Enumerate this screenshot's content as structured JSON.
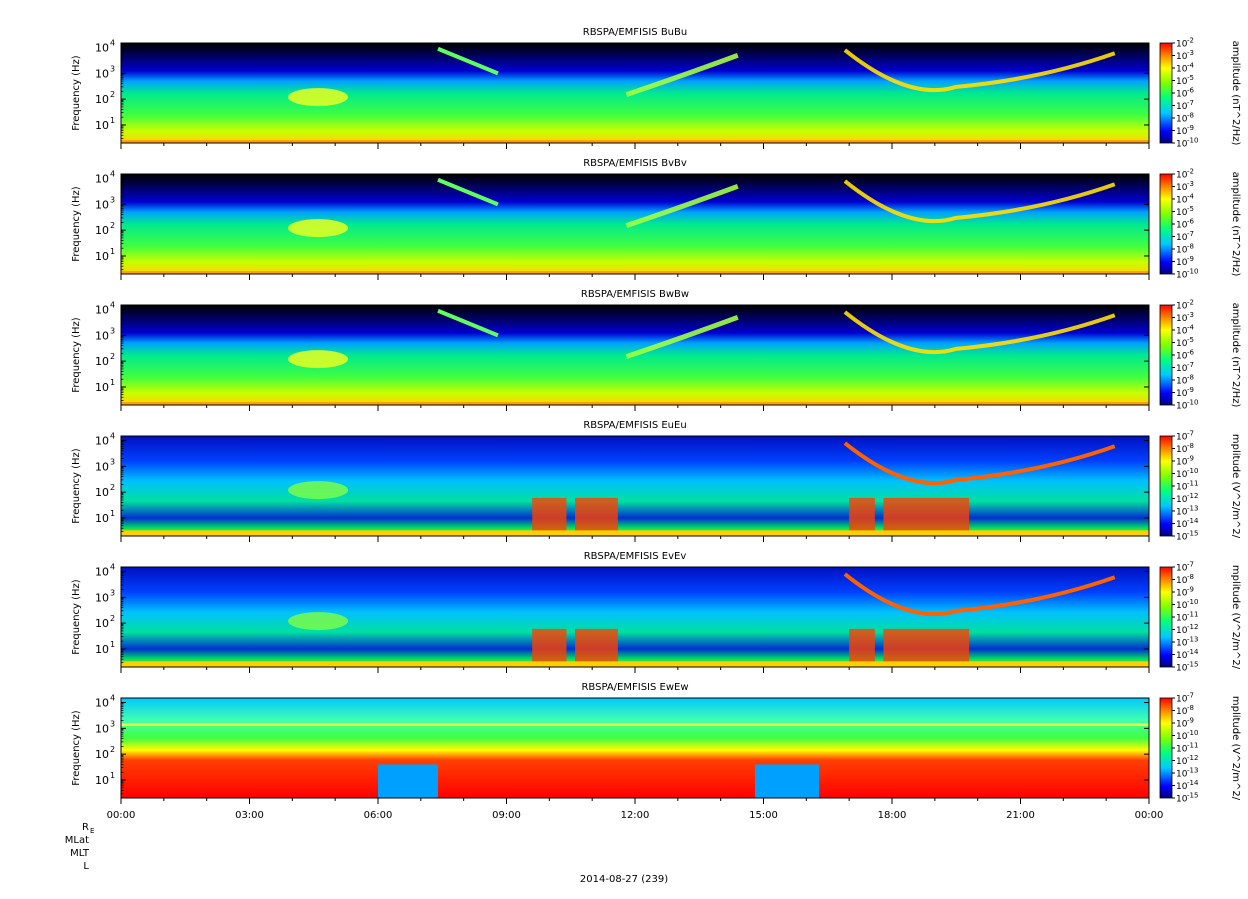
{
  "chart_data": {
    "type": "heatmap",
    "x_ticks": [
      "00:00",
      "03:00",
      "06:00",
      "09:00",
      "12:00",
      "15:00",
      "18:00",
      "21:00",
      "00:00"
    ],
    "x_range_hours": [
      0,
      24
    ],
    "y_scale": "log",
    "y_range_hz": [
      2,
      15000
    ],
    "y_ticks": [
      {
        "value": 10,
        "label": "10",
        "exp": "1"
      },
      {
        "value": 100,
        "label": "10",
        "exp": "2"
      },
      {
        "value": 1000,
        "label": "10",
        "exp": "3"
      },
      {
        "value": 10000,
        "label": "10",
        "exp": "4"
      }
    ],
    "ylabel": "Frequency (Hz)",
    "panels": [
      {
        "title": "RBSPA/EMFISIS  BuBu",
        "colorbar_label": "amplitude (nT^2/Hz)",
        "colorbar_range_exp": [
          -10,
          -2
        ],
        "colorbar_ticks": [
          "10",
          "10",
          "10",
          "10",
          "10",
          "10",
          "10",
          "10",
          "10"
        ],
        "colorbar_exps": [
          "-2",
          "-3",
          "-4",
          "-5",
          "-6",
          "-7",
          "-8",
          "-9",
          "-10"
        ],
        "kind": "B"
      },
      {
        "title": "RBSPA/EMFISIS  BvBv",
        "colorbar_label": "amplitude (nT^2/Hz)",
        "colorbar_range_exp": [
          -10,
          -2
        ],
        "colorbar_ticks": [
          "10",
          "10",
          "10",
          "10",
          "10",
          "10",
          "10",
          "10",
          "10"
        ],
        "colorbar_exps": [
          "-2",
          "-3",
          "-4",
          "-5",
          "-6",
          "-7",
          "-8",
          "-9",
          "-10"
        ],
        "kind": "B"
      },
      {
        "title": "RBSPA/EMFISIS  BwBw",
        "colorbar_label": "amplitude (nT^2/Hz)",
        "colorbar_range_exp": [
          -10,
          -2
        ],
        "colorbar_ticks": [
          "10",
          "10",
          "10",
          "10",
          "10",
          "10",
          "10",
          "10",
          "10"
        ],
        "colorbar_exps": [
          "-2",
          "-3",
          "-4",
          "-5",
          "-6",
          "-7",
          "-8",
          "-9",
          "-10"
        ],
        "kind": "B"
      },
      {
        "title": "RBSPA/EMFISIS  EuEu",
        "colorbar_label": "mplitude (V^2/m^2/",
        "colorbar_range_exp": [
          -15,
          -7
        ],
        "colorbar_ticks": [
          "10",
          "10",
          "10",
          "10",
          "10",
          "10",
          "10",
          "10",
          "10"
        ],
        "colorbar_exps": [
          "-7",
          "-8",
          "-9",
          "-10",
          "-11",
          "-12",
          "-13",
          "-14",
          "-15"
        ],
        "kind": "E"
      },
      {
        "title": "RBSPA/EMFISIS  EvEv",
        "colorbar_label": "mplitude (V^2/m^2/",
        "colorbar_range_exp": [
          -15,
          -7
        ],
        "colorbar_ticks": [
          "10",
          "10",
          "10",
          "10",
          "10",
          "10",
          "10",
          "10",
          "10"
        ],
        "colorbar_exps": [
          "-7",
          "-8",
          "-9",
          "-10",
          "-11",
          "-12",
          "-13",
          "-14",
          "-15"
        ],
        "kind": "E"
      },
      {
        "title": "RBSPA/EMFISIS  EwEw",
        "colorbar_label": "mplitude (V^2/m^2/",
        "colorbar_range_exp": [
          -15,
          -7
        ],
        "colorbar_ticks": [
          "10",
          "10",
          "10",
          "10",
          "10",
          "10",
          "10",
          "10",
          "10"
        ],
        "colorbar_exps": [
          "-7",
          "-8",
          "-9",
          "-10",
          "-11",
          "-12",
          "-13",
          "-14",
          "-15"
        ],
        "kind": "Ew"
      }
    ],
    "ephemeris_labels": [
      "R",
      "MLat",
      "MLT",
      "L"
    ],
    "ephemeris_re_sub": "E",
    "date_label": "2014-08-27 (239)"
  },
  "colors": {
    "black": "#000000",
    "blue": "#0000ff",
    "cyan": "#00c8ff",
    "green": "#00ff40",
    "yellow": "#ffff00",
    "orange": "#ff8000",
    "red": "#ff0000"
  }
}
